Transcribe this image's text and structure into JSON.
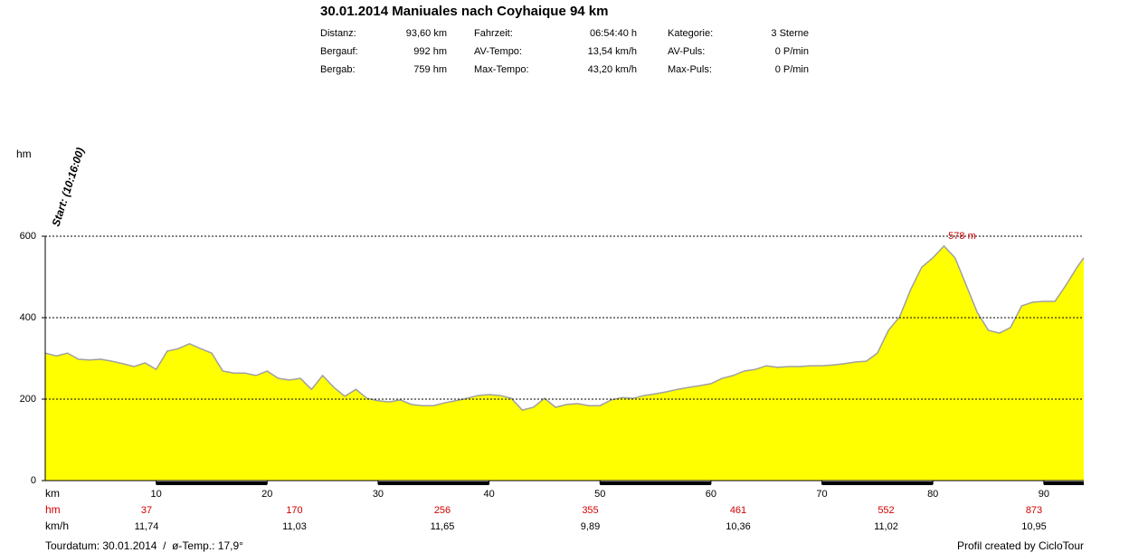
{
  "chart_data": {
    "type": "area",
    "title": "30.01.2014 Maniuales nach Coyhaique 94 km",
    "stats": [
      [
        "Distanz:",
        "93,60 km",
        "Fahrzeit:",
        "06:54:40 h",
        "Kategorie:",
        "3 Sterne"
      ],
      [
        "Bergauf:",
        "992 hm",
        "AV-Tempo:",
        "13,54 km/h",
        "AV-Puls:",
        "0 P/min"
      ],
      [
        "Bergab:",
        "759 hm",
        "Max-Tempo:",
        "43,20 km/h",
        "Max-Puls:",
        "0 P/min"
      ]
    ],
    "y_label": "hm",
    "x_label": "km",
    "start_label": "Start: (10:16:00)",
    "max_label": "578 m",
    "x": [
      0,
      1,
      2,
      3,
      4,
      5,
      6,
      7,
      8,
      9,
      10,
      11,
      12,
      13,
      14,
      15,
      16,
      17,
      18,
      19,
      20,
      21,
      22,
      23,
      24,
      25,
      26,
      27,
      28,
      29,
      30,
      31,
      32,
      33,
      34,
      35,
      36,
      37,
      38,
      39,
      40,
      41,
      42,
      43,
      44,
      45,
      46,
      47,
      48,
      49,
      50,
      51,
      52,
      53,
      54,
      55,
      56,
      57,
      58,
      59,
      60,
      61,
      62,
      63,
      64,
      65,
      66,
      67,
      68,
      69,
      70,
      71,
      72,
      73,
      74,
      75,
      76,
      77,
      78,
      79,
      80,
      81,
      82,
      83,
      84,
      85,
      86,
      87,
      88,
      89,
      90,
      91,
      92,
      93,
      93.6
    ],
    "values": [
      313,
      306,
      313,
      298,
      296,
      298,
      293,
      287,
      280,
      289,
      273,
      318,
      324,
      336,
      324,
      313,
      269,
      264,
      264,
      258,
      269,
      251,
      247,
      251,
      224,
      258,
      229,
      207,
      224,
      202,
      196,
      193,
      198,
      187,
      184,
      184,
      191,
      196,
      202,
      209,
      211,
      209,
      202,
      173,
      180,
      202,
      180,
      187,
      189,
      184,
      184,
      198,
      204,
      202,
      209,
      213,
      218,
      224,
      229,
      233,
      238,
      251,
      258,
      269,
      273,
      282,
      278,
      280,
      280,
      282,
      282,
      284,
      287,
      291,
      293,
      313,
      369,
      402,
      469,
      524,
      547,
      576,
      547,
      480,
      413,
      369,
      362,
      376,
      429,
      438,
      440,
      440,
      480,
      524,
      547
    ],
    "fill": "#ffff00",
    "line_color": "#a0a0a0",
    "xlim": [
      0,
      93.6
    ],
    "ylim": [
      0,
      600
    ],
    "xticks": [
      10,
      20,
      30,
      40,
      50,
      60,
      70,
      80,
      90
    ],
    "yticks": [
      0,
      200,
      400,
      600
    ],
    "grid": true,
    "hm_row_label": "hm",
    "hm_row": [
      "37",
      "170",
      "256",
      "355",
      "461",
      "552",
      "873"
    ],
    "speed_row_label": "km/h",
    "speed_row": [
      "11,74",
      "11,03",
      "11,65",
      "9,89",
      "10,36",
      "11,02",
      "10,95"
    ],
    "footer_left": "Tourdatum: 30.01.2014  /  ø-Temp.: 17,9°",
    "footer_right": "Profil created by CicloTour"
  }
}
